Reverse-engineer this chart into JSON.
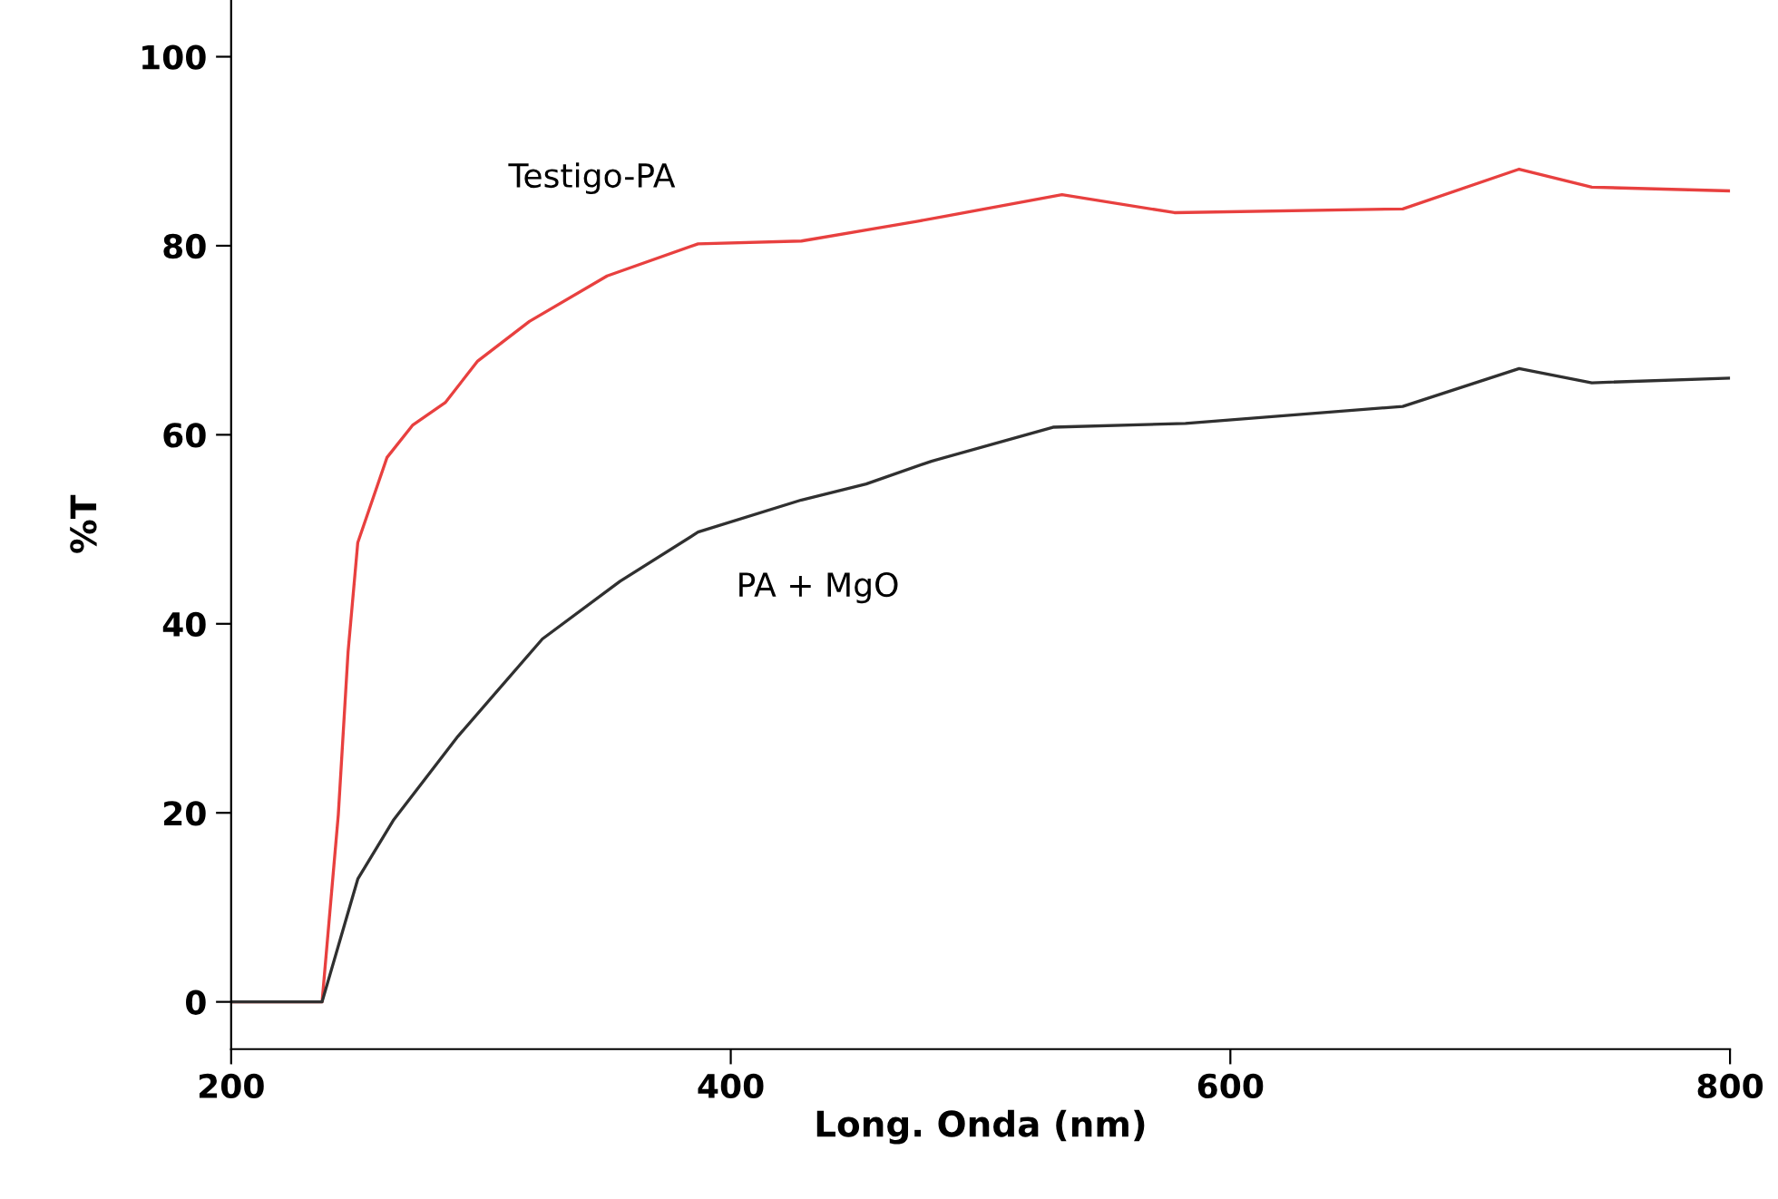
{
  "chart_data": {
    "type": "line",
    "xlabel": "Long. Onda (nm)",
    "ylabel": "%T",
    "xlim": [
      200,
      800
    ],
    "ylim": [
      -5,
      106
    ],
    "xticks": [
      200,
      400,
      600,
      800
    ],
    "yticks": [
      0,
      20,
      40,
      60,
      80,
      100
    ],
    "grid": false,
    "legend": false,
    "marker": "none",
    "line_style": "solid",
    "series": [
      {
        "name": "Testigo-PA",
        "color": "#e8403f",
        "x": [
          200,
          236.4,
          242.9,
          246.8,
          250.7,
          262.4,
          272.6,
          285.7,
          298.7,
          319.4,
          350.5,
          386.9,
          428.3,
          475,
          485.4,
          532.6,
          577.6,
          669,
          715.6,
          744.7,
          800
        ],
        "values": [
          0,
          0,
          19.8,
          37,
          48.6,
          57.6,
          61,
          63.4,
          67.8,
          72,
          76.8,
          80.2,
          80.5,
          82.6,
          83.1,
          85.4,
          83.5,
          83.9,
          88.1,
          86.2,
          85.8
        ]
      },
      {
        "name": "PA + MgO",
        "color": "#303030",
        "x": [
          200,
          236.4,
          250.7,
          264.9,
          290.8,
          324.6,
          355.7,
          386.9,
          428.3,
          454.2,
          480.3,
          529,
          582,
          669,
          715.6,
          744.7,
          800
        ],
        "values": [
          0,
          0,
          13,
          19.2,
          28.1,
          38.4,
          44.5,
          49.7,
          53.1,
          54.8,
          57.2,
          60.8,
          61.2,
          63,
          67,
          65.5,
          66
        ]
      }
    ]
  }
}
